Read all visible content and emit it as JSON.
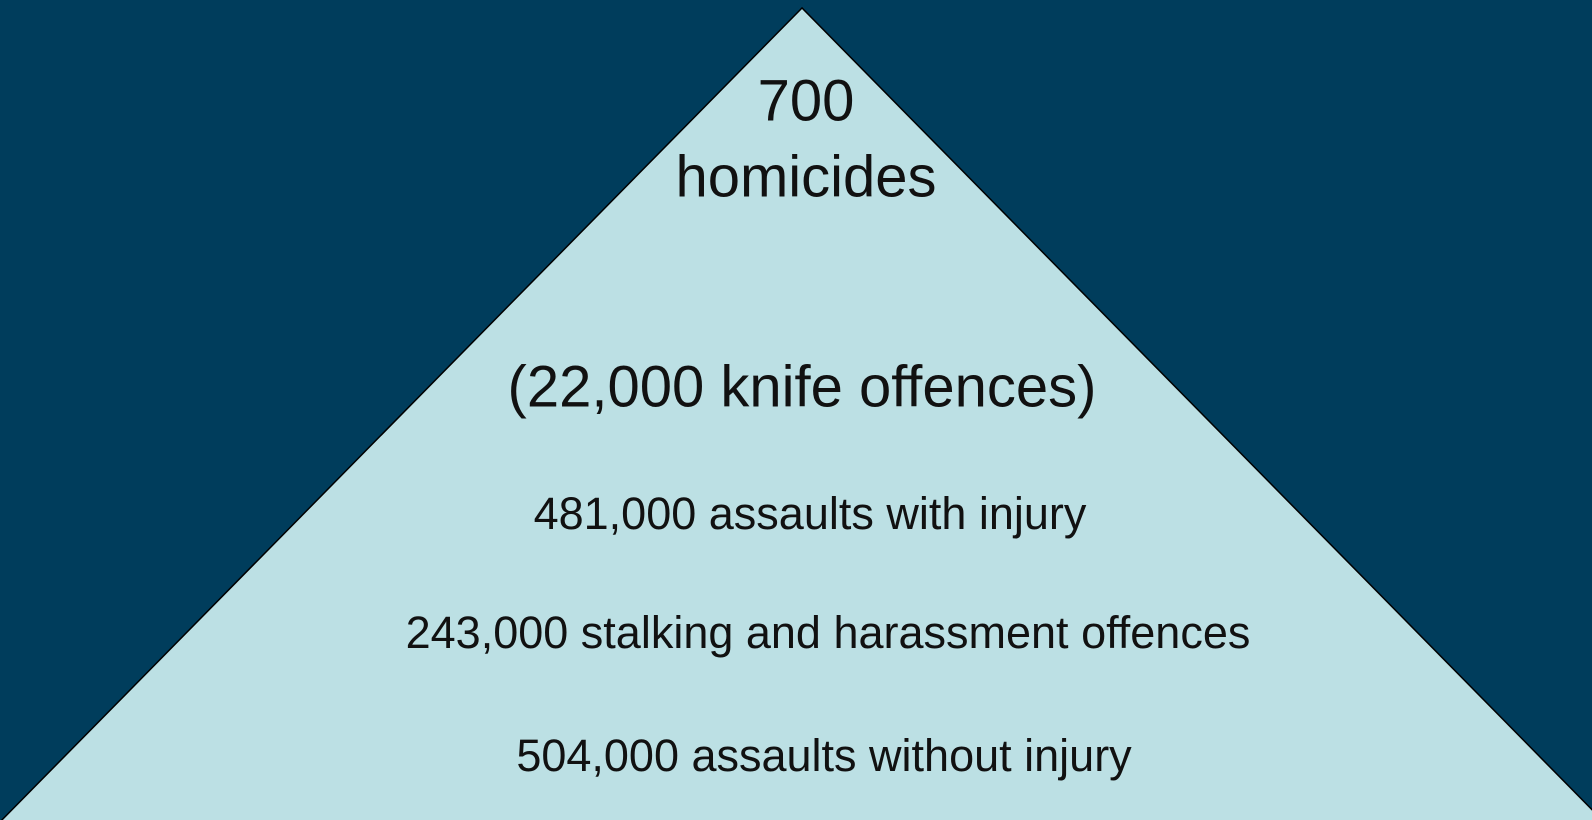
{
  "levels": [
    {
      "lines": [
        "700",
        "homicides"
      ]
    },
    {
      "lines": [
        "(22,000 knife offences)"
      ]
    },
    {
      "lines": [
        "481,000 assaults with injury"
      ]
    },
    {
      "lines": [
        "243,000 stalking and harassment offences"
      ]
    },
    {
      "lines": [
        "504,000 assaults without injury"
      ]
    }
  ]
}
